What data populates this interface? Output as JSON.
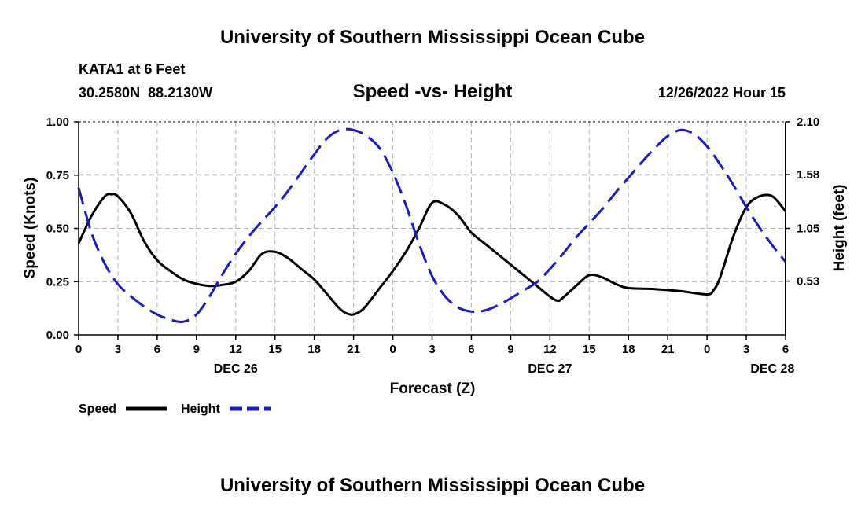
{
  "header": {
    "title_top": "University of Southern Mississippi Ocean Cube",
    "title_bottom": "University of Southern Mississippi Ocean Cube",
    "station": "KATA1 at 6 Feet",
    "coords": "30.2580N  88.2130W",
    "chart_title": "Speed -vs- Height",
    "datetime": "12/26/2022 Hour 15"
  },
  "legend": {
    "speed_label": "Speed",
    "height_label": "Height"
  },
  "colors": {
    "speed": "#000000",
    "height": "#1a1acc",
    "grid": "#b4b4b4"
  },
  "chart_data": {
    "type": "line",
    "title": "Speed -vs- Height",
    "xlabel": "Forecast (Z)",
    "ylabel_left": "Speed (Knots)",
    "ylabel_right": "Height (feet)",
    "x_range_hours": [
      0,
      54
    ],
    "x_ticks": [
      {
        "h": 0,
        "label": "0"
      },
      {
        "h": 3,
        "label": "3"
      },
      {
        "h": 6,
        "label": "6"
      },
      {
        "h": 9,
        "label": "9"
      },
      {
        "h": 12,
        "label": "12"
      },
      {
        "h": 15,
        "label": "15"
      },
      {
        "h": 18,
        "label": "18"
      },
      {
        "h": 21,
        "label": "21"
      },
      {
        "h": 24,
        "label": "0"
      },
      {
        "h": 27,
        "label": "3"
      },
      {
        "h": 30,
        "label": "6"
      },
      {
        "h": 33,
        "label": "9"
      },
      {
        "h": 36,
        "label": "12"
      },
      {
        "h": 39,
        "label": "15"
      },
      {
        "h": 42,
        "label": "18"
      },
      {
        "h": 45,
        "label": "21"
      },
      {
        "h": 48,
        "label": "0"
      },
      {
        "h": 51,
        "label": "3"
      },
      {
        "h": 54,
        "label": "6"
      }
    ],
    "day_labels": [
      {
        "h": 12,
        "label": "DEC 26"
      },
      {
        "h": 36,
        "label": "DEC 27"
      },
      {
        "h": 53,
        "label": "DEC 28"
      }
    ],
    "ylim_left": [
      0,
      1
    ],
    "yticks_left": [
      {
        "v": 0,
        "label": "0.00"
      },
      {
        "v": 0.25,
        "label": "0.25"
      },
      {
        "v": 0.5,
        "label": "0.50"
      },
      {
        "v": 0.75,
        "label": "0.75"
      },
      {
        "v": 1,
        "label": "1.00"
      }
    ],
    "ylim_right": [
      0,
      2.1
    ],
    "yticks_right": [
      {
        "v": 0.53,
        "label": "0.53"
      },
      {
        "v": 1.05,
        "label": "1.05"
      },
      {
        "v": 1.58,
        "label": "1.58"
      },
      {
        "v": 2.1,
        "label": "2.10"
      }
    ],
    "series": [
      {
        "name": "Speed",
        "axis": "left",
        "style": "solid",
        "points": [
          [
            0,
            0.43
          ],
          [
            1,
            0.56
          ],
          [
            2,
            0.65
          ],
          [
            2.5,
            0.66
          ],
          [
            3,
            0.65
          ],
          [
            4,
            0.57
          ],
          [
            5,
            0.44
          ],
          [
            6,
            0.35
          ],
          [
            7,
            0.3
          ],
          [
            8,
            0.26
          ],
          [
            9,
            0.24
          ],
          [
            10,
            0.23
          ],
          [
            11,
            0.235
          ],
          [
            12,
            0.25
          ],
          [
            13,
            0.3
          ],
          [
            14,
            0.38
          ],
          [
            15,
            0.39
          ],
          [
            16,
            0.36
          ],
          [
            17,
            0.31
          ],
          [
            18,
            0.26
          ],
          [
            19,
            0.19
          ],
          [
            20,
            0.12
          ],
          [
            20.8,
            0.095
          ],
          [
            21.5,
            0.11
          ],
          [
            22,
            0.14
          ],
          [
            23,
            0.22
          ],
          [
            24,
            0.3
          ],
          [
            25,
            0.39
          ],
          [
            26,
            0.5
          ],
          [
            27,
            0.62
          ],
          [
            28,
            0.61
          ],
          [
            29,
            0.56
          ],
          [
            30,
            0.48
          ],
          [
            31,
            0.43
          ],
          [
            32,
            0.38
          ],
          [
            33,
            0.33
          ],
          [
            34,
            0.28
          ],
          [
            35,
            0.23
          ],
          [
            36,
            0.18
          ],
          [
            36.6,
            0.16
          ],
          [
            37,
            0.175
          ],
          [
            38,
            0.23
          ],
          [
            39,
            0.28
          ],
          [
            40,
            0.27
          ],
          [
            41,
            0.24
          ],
          [
            42,
            0.22
          ],
          [
            44,
            0.215
          ],
          [
            46,
            0.205
          ],
          [
            48,
            0.19
          ],
          [
            48.5,
            0.21
          ],
          [
            49,
            0.27
          ],
          [
            50,
            0.46
          ],
          [
            51,
            0.6
          ],
          [
            52,
            0.65
          ],
          [
            53,
            0.65
          ],
          [
            54,
            0.58
          ]
        ]
      },
      {
        "name": "Height",
        "axis": "right",
        "style": "dashed",
        "points": [
          [
            0,
            1.45
          ],
          [
            1,
            1.0
          ],
          [
            2,
            0.7
          ],
          [
            3,
            0.5
          ],
          [
            4,
            0.38
          ],
          [
            5,
            0.28
          ],
          [
            6,
            0.2
          ],
          [
            7,
            0.15
          ],
          [
            8,
            0.13
          ],
          [
            9,
            0.2
          ],
          [
            10,
            0.38
          ],
          [
            11,
            0.6
          ],
          [
            12,
            0.8
          ],
          [
            13,
            0.97
          ],
          [
            14,
            1.12
          ],
          [
            15,
            1.26
          ],
          [
            16,
            1.42
          ],
          [
            17,
            1.6
          ],
          [
            18,
            1.78
          ],
          [
            19,
            1.94
          ],
          [
            20,
            2.02
          ],
          [
            21,
            2.02
          ],
          [
            22,
            1.96
          ],
          [
            23,
            1.84
          ],
          [
            24,
            1.6
          ],
          [
            25,
            1.28
          ],
          [
            26,
            0.9
          ],
          [
            27,
            0.58
          ],
          [
            28,
            0.38
          ],
          [
            29,
            0.27
          ],
          [
            30,
            0.23
          ],
          [
            31,
            0.24
          ],
          [
            32,
            0.29
          ],
          [
            33,
            0.36
          ],
          [
            34,
            0.44
          ],
          [
            35,
            0.52
          ],
          [
            36,
            0.65
          ],
          [
            37,
            0.8
          ],
          [
            38,
            0.96
          ],
          [
            39,
            1.1
          ],
          [
            40,
            1.24
          ],
          [
            41,
            1.4
          ],
          [
            42,
            1.55
          ],
          [
            43,
            1.7
          ],
          [
            44,
            1.84
          ],
          [
            45,
            1.96
          ],
          [
            46,
            2.02
          ],
          [
            47,
            1.98
          ],
          [
            48,
            1.86
          ],
          [
            49,
            1.68
          ],
          [
            50,
            1.48
          ],
          [
            51,
            1.26
          ],
          [
            52,
            1.06
          ],
          [
            53,
            0.88
          ],
          [
            54,
            0.72
          ]
        ]
      }
    ]
  }
}
